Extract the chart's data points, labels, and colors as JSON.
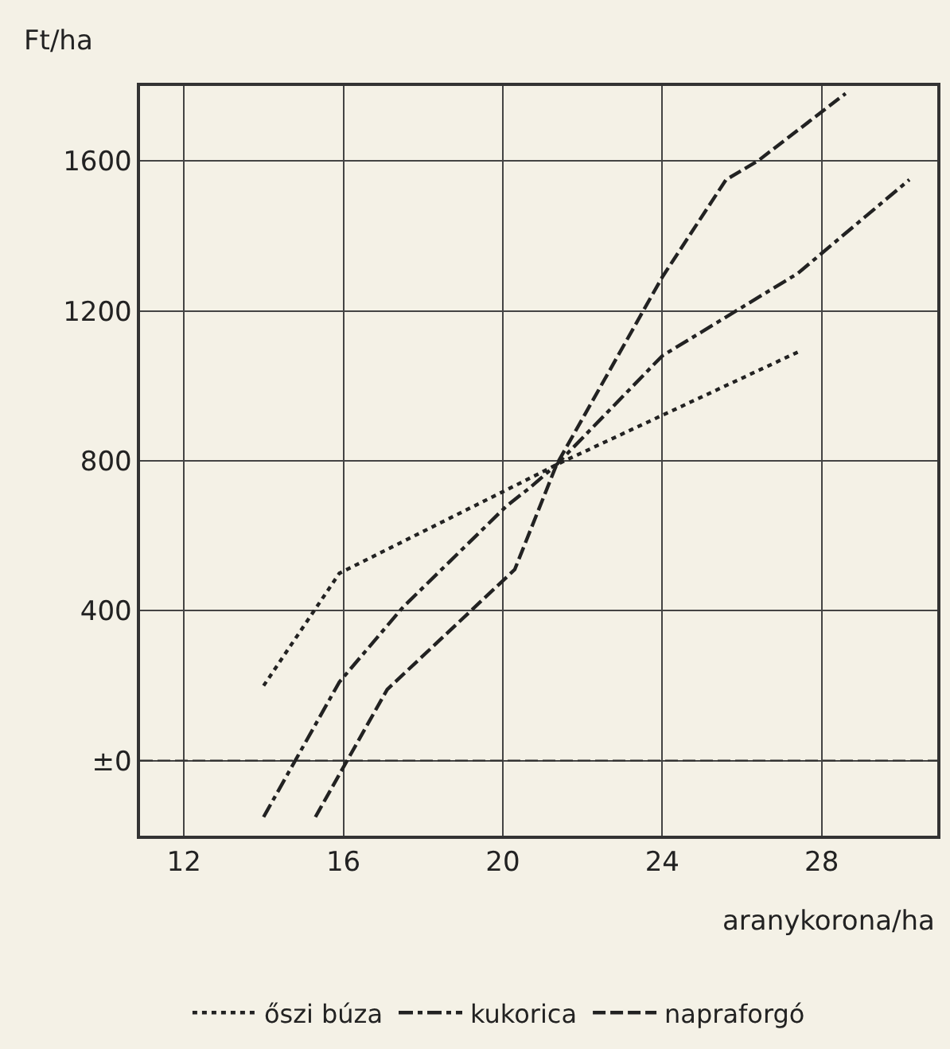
{
  "chart_data": {
    "type": "line",
    "xlabel": "aranykorona/ha",
    "ylabel": "Ft/ha",
    "xlim": [
      10.9,
      30.9
    ],
    "xticks": [
      12,
      16,
      20,
      24,
      28
    ],
    "ylim": [
      -200,
      1800
    ],
    "yticks": [
      {
        "value": 0,
        "label": "±0"
      },
      400,
      800,
      1200,
      1600
    ],
    "grid": true,
    "legend": "bottom",
    "marker": "none",
    "ref_lines": [
      {
        "axis": "y",
        "value": 0,
        "label": null,
        "color": "#333333",
        "line_style": "dashed"
      }
    ],
    "series": [
      {
        "name": "őszi búza",
        "color": "#222222",
        "line_style": "dotted",
        "x": [
          14,
          15.9,
          20.8,
          21.35,
          27.4
        ],
        "values": [
          200,
          500,
          760,
          790,
          1090
        ]
      },
      {
        "name": "kukorica",
        "color": "#222222",
        "line_style": "dashdot",
        "x": [
          14,
          15.9,
          17.5,
          20.1,
          20.7,
          21.35,
          24,
          27.4,
          30.2
        ],
        "values": [
          -150,
          210,
          410,
          680,
          730,
          790,
          1080,
          1300,
          1550
        ]
      },
      {
        "name": "napraforgó",
        "color": "#222222",
        "line_style": "dashed",
        "x": [
          15.3,
          17.1,
          20.3,
          21.35,
          24,
          25.6,
          26.4,
          28.6
        ],
        "values": [
          -150,
          190,
          510,
          790,
          1290,
          1550,
          1600,
          1780
        ]
      }
    ]
  }
}
